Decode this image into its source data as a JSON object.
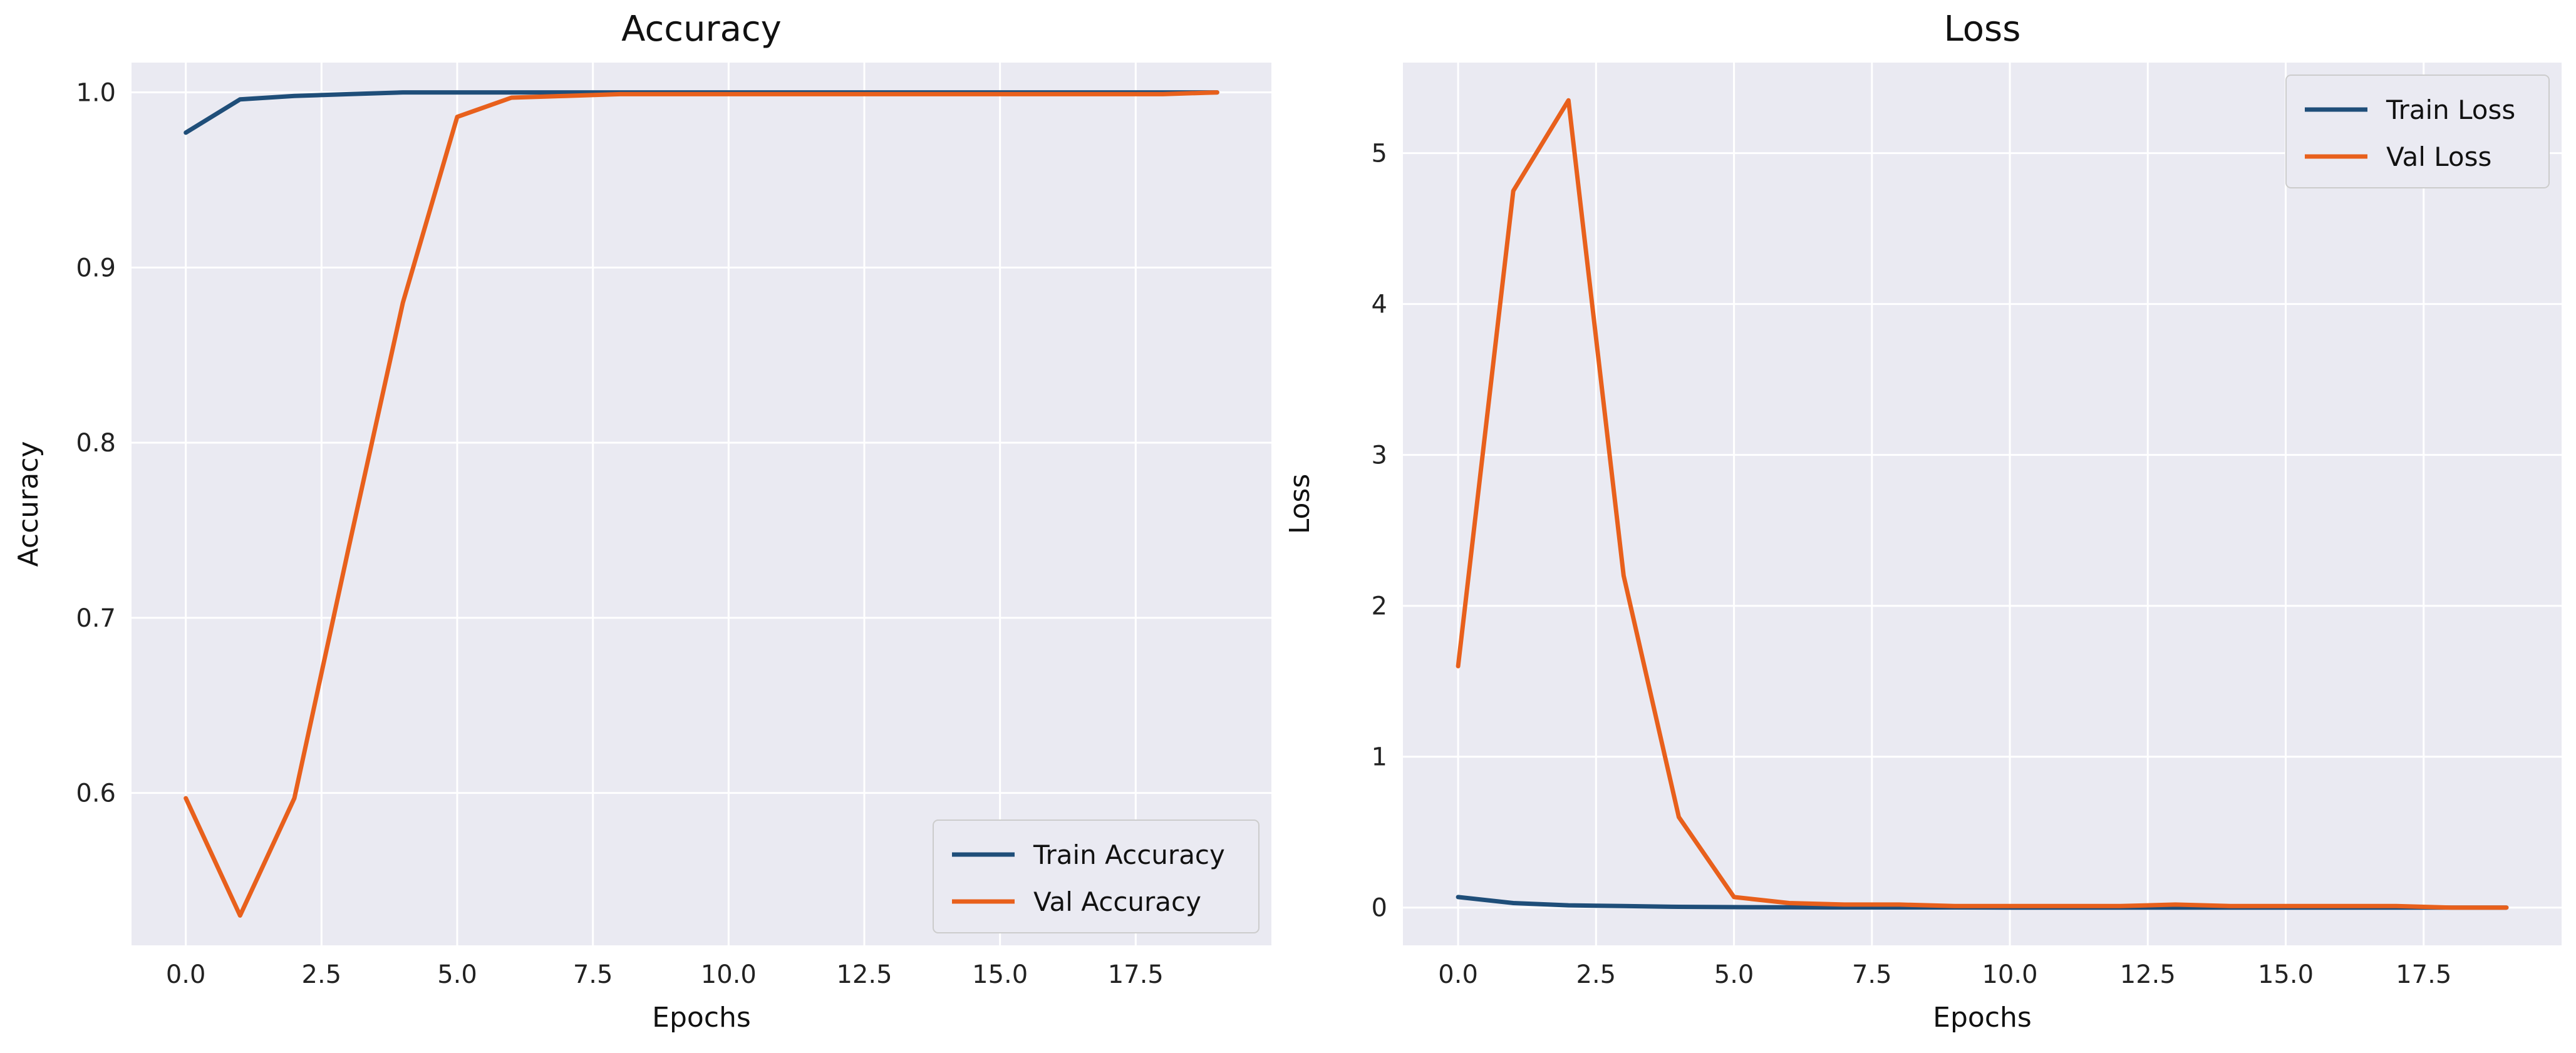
{
  "chart_data": [
    {
      "type": "line",
      "title": "Accuracy",
      "xlabel": "Epochs",
      "ylabel": "Accuracy",
      "xlim": [
        -1.0,
        20.0
      ],
      "ylim": [
        0.513,
        1.017
      ],
      "xticks": [
        0.0,
        2.5,
        5.0,
        7.5,
        10.0,
        12.5,
        15.0,
        17.5
      ],
      "xtick_labels": [
        "0.0",
        "2.5",
        "5.0",
        "7.5",
        "10.0",
        "12.5",
        "15.0",
        "17.5"
      ],
      "yticks": [
        0.6,
        0.7,
        0.8,
        0.9,
        1.0
      ],
      "ytick_labels": [
        "0.6",
        "0.7",
        "0.8",
        "0.9",
        "1.0"
      ],
      "grid": true,
      "legend_position": "bottom-right",
      "x": [
        0,
        1,
        2,
        3,
        4,
        5,
        6,
        7,
        8,
        9,
        10,
        11,
        12,
        13,
        14,
        15,
        16,
        17,
        18,
        19
      ],
      "series": [
        {
          "name": "Train Accuracy",
          "color": "#1f4e79",
          "values": [
            0.977,
            0.996,
            0.998,
            0.999,
            1.0,
            1.0,
            1.0,
            1.0,
            1.0,
            1.0,
            1.0,
            1.0,
            1.0,
            1.0,
            1.0,
            1.0,
            1.0,
            1.0,
            1.0,
            1.0
          ]
        },
        {
          "name": "Val Accuracy",
          "color": "#e8601c",
          "values": [
            0.597,
            0.53,
            0.597,
            0.74,
            0.88,
            0.986,
            0.997,
            0.998,
            0.999,
            0.999,
            0.999,
            0.999,
            0.999,
            0.999,
            0.999,
            0.999,
            0.999,
            0.999,
            0.999,
            1.0
          ]
        }
      ]
    },
    {
      "type": "line",
      "title": "Loss",
      "xlabel": "Epochs",
      "ylabel": "Loss",
      "xlim": [
        -1.0,
        20.0
      ],
      "ylim": [
        -0.25,
        5.6
      ],
      "xticks": [
        0.0,
        2.5,
        5.0,
        7.5,
        10.0,
        12.5,
        15.0,
        17.5
      ],
      "xtick_labels": [
        "0.0",
        "2.5",
        "5.0",
        "7.5",
        "10.0",
        "12.5",
        "15.0",
        "17.5"
      ],
      "yticks": [
        0,
        1,
        2,
        3,
        4,
        5
      ],
      "ytick_labels": [
        "0",
        "1",
        "2",
        "3",
        "4",
        "5"
      ],
      "grid": true,
      "legend_position": "top-right",
      "x": [
        0,
        1,
        2,
        3,
        4,
        5,
        6,
        7,
        8,
        9,
        10,
        11,
        12,
        13,
        14,
        15,
        16,
        17,
        18,
        19
      ],
      "series": [
        {
          "name": "Train Loss",
          "color": "#1f4e79",
          "values": [
            0.07,
            0.03,
            0.015,
            0.01,
            0.005,
            0.003,
            0.002,
            0.001,
            0.001,
            0.001,
            0.0,
            0.0,
            0.0,
            0.0,
            0.0,
            0.0,
            0.0,
            0.0,
            0.0,
            0.0
          ]
        },
        {
          "name": "Val Loss",
          "color": "#e8601c",
          "values": [
            1.6,
            4.75,
            5.35,
            2.2,
            0.6,
            0.07,
            0.03,
            0.02,
            0.02,
            0.01,
            0.01,
            0.01,
            0.01,
            0.02,
            0.01,
            0.01,
            0.01,
            0.01,
            0.0,
            0.0
          ]
        }
      ]
    }
  ]
}
